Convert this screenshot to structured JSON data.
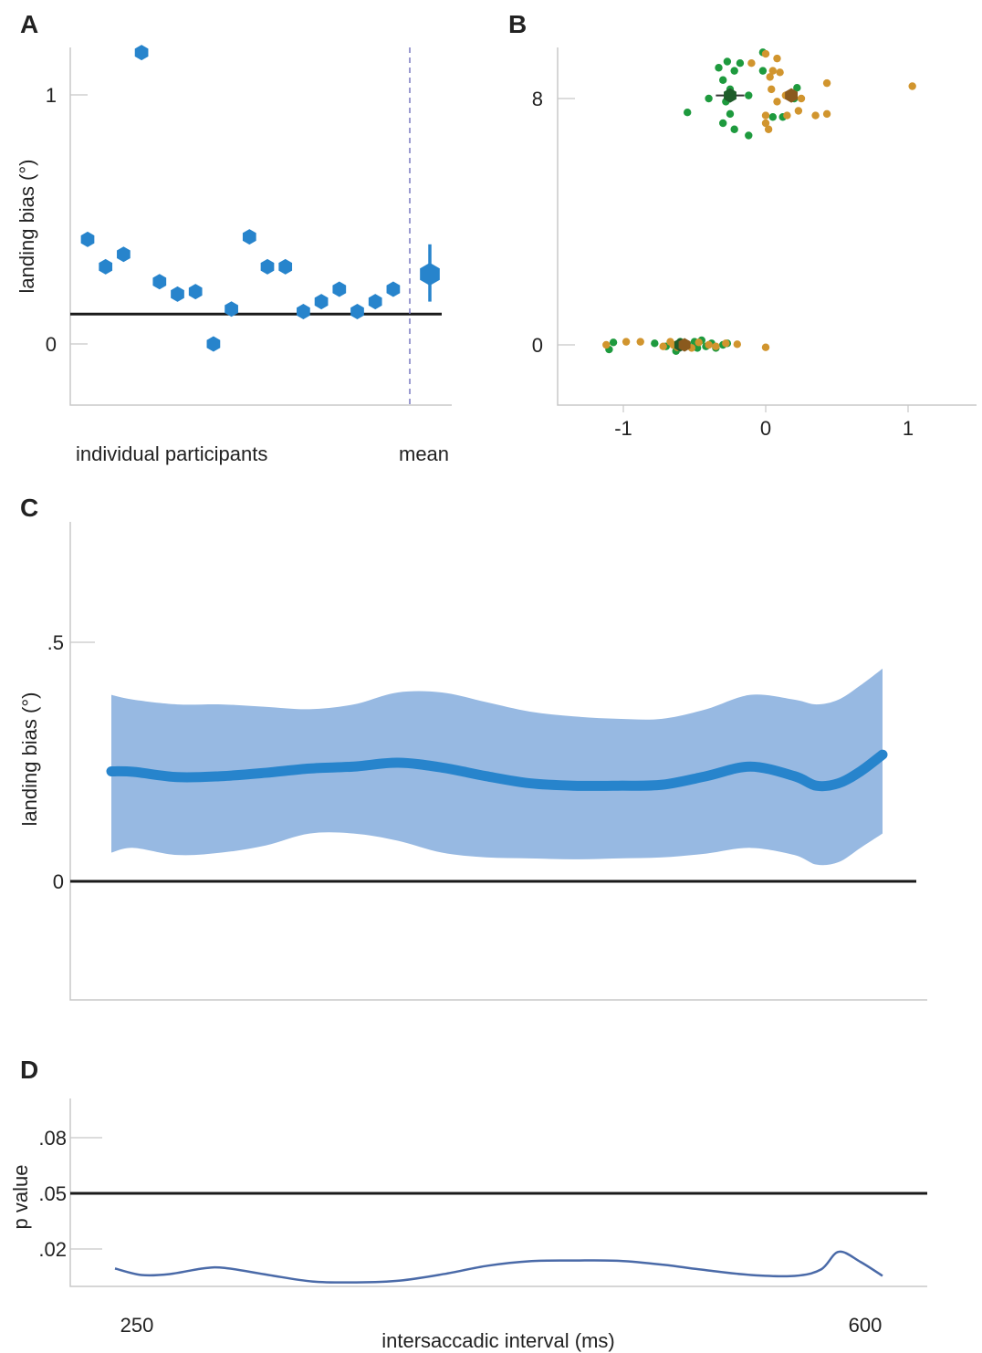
{
  "panels": {
    "A": {
      "letter": "A"
    },
    "B": {
      "letter": "B"
    },
    "C": {
      "letter": "C"
    },
    "D": {
      "letter": "D"
    }
  },
  "colors": {
    "blue": "#2784cc",
    "band": "#97b9e2",
    "green": "#1e9a3e",
    "orange": "#d1952e",
    "dark_green": "#1f5c2a",
    "dark_orange": "#8a5a1e",
    "p_line": "#4a6aa8",
    "dashed": "#7878c0",
    "black": "#1a1a1a"
  },
  "chart_data": [
    {
      "panel": "A",
      "type": "scatter",
      "ylabel": "landing bias (°)",
      "xlabel_left": "individual participants",
      "xlabel_right": "mean",
      "yticks": [
        0,
        1
      ],
      "ytick_labels": [
        "0",
        "1"
      ],
      "ylim": [
        -0.25,
        1.2
      ],
      "reference_line": 0.12,
      "participants": [
        0.42,
        0.31,
        0.36,
        1.17,
        0.25,
        0.2,
        0.21,
        0.0,
        0.14,
        0.43,
        0.31,
        0.31,
        0.13,
        0.17,
        0.22,
        0.13,
        0.17,
        0.22
      ],
      "mean": {
        "value": 0.28,
        "ci_low": 0.17,
        "ci_high": 0.4
      }
    },
    {
      "panel": "B",
      "type": "scatter",
      "xticks": [
        -1,
        0,
        1
      ],
      "xtick_labels": [
        "-1",
        "0",
        "1"
      ],
      "yticks": [
        0,
        8
      ],
      "ytick_labels": [
        "0",
        "8"
      ],
      "xlim": [
        -1.45,
        1.4
      ],
      "ylim": [
        -2,
        9.5
      ],
      "series": [
        {
          "color_key": "green",
          "points_y8": [
            [
              -0.02,
              9.5
            ],
            [
              -0.27,
              9.2
            ],
            [
              -0.18,
              9.15
            ],
            [
              -0.33,
              9.0
            ],
            [
              -0.22,
              8.9
            ],
            [
              -0.3,
              8.6
            ],
            [
              -0.25,
              8.3
            ],
            [
              -0.4,
              8.0
            ],
            [
              -0.28,
              7.9
            ],
            [
              -0.12,
              8.1
            ],
            [
              0.22,
              8.35
            ],
            [
              0.2,
              8.0
            ],
            [
              -0.55,
              7.55
            ],
            [
              -0.3,
              7.2
            ],
            [
              0.12,
              7.4
            ],
            [
              -0.22,
              7.0
            ],
            [
              -0.12,
              6.8
            ],
            [
              -0.25,
              7.5
            ],
            [
              0.05,
              7.4
            ],
            [
              -0.02,
              8.9
            ]
          ],
          "points_y0": [
            [
              -1.07,
              0.08
            ],
            [
              -1.1,
              -0.15
            ],
            [
              -0.78,
              0.05
            ],
            [
              -0.7,
              -0.05
            ],
            [
              -0.63,
              -0.2
            ],
            [
              -0.55,
              0.02
            ],
            [
              -0.5,
              0.1
            ],
            [
              -0.48,
              -0.1
            ],
            [
              -0.45,
              0.15
            ],
            [
              -0.42,
              -0.05
            ],
            [
              -0.38,
              0.05
            ],
            [
              -0.35,
              -0.1
            ],
            [
              -0.3,
              0.0
            ],
            [
              -0.27,
              0.05
            ],
            [
              -0.6,
              0.1
            ],
            [
              -0.57,
              -0.08
            ]
          ],
          "mean_y8": {
            "x": -0.25,
            "y": 8.1,
            "err": 0.08
          },
          "mean_y0": {
            "x": -0.6,
            "y": 0.0
          }
        },
        {
          "color_key": "orange",
          "points_y8": [
            [
              0.0,
              9.45
            ],
            [
              0.08,
              9.3
            ],
            [
              -0.1,
              9.15
            ],
            [
              0.1,
              8.85
            ],
            [
              0.03,
              8.7
            ],
            [
              0.04,
              8.3
            ],
            [
              0.14,
              8.1
            ],
            [
              0.08,
              7.9
            ],
            [
              0.25,
              8.0
            ],
            [
              0.43,
              8.5
            ],
            [
              1.03,
              8.4
            ],
            [
              0.0,
              7.45
            ],
            [
              0.15,
              7.45
            ],
            [
              0.23,
              7.6
            ],
            [
              0.35,
              7.45
            ],
            [
              0.43,
              7.5
            ],
            [
              0.0,
              7.2
            ],
            [
              0.02,
              7.0
            ],
            [
              0.05,
              8.9
            ]
          ],
          "points_y0": [
            [
              -1.12,
              0.0
            ],
            [
              -0.98,
              0.1
            ],
            [
              -0.88,
              0.1
            ],
            [
              -0.72,
              -0.05
            ],
            [
              -0.67,
              0.1
            ],
            [
              -0.62,
              -0.08
            ],
            [
              -0.57,
              0.05
            ],
            [
              -0.52,
              -0.1
            ],
            [
              -0.47,
              0.08
            ],
            [
              -0.4,
              0.0
            ],
            [
              -0.35,
              -0.05
            ],
            [
              -0.28,
              0.05
            ],
            [
              -0.2,
              0.02
            ],
            [
              0.0,
              -0.08
            ],
            [
              -0.65,
              0.0
            ]
          ],
          "mean_y8": {
            "x": 0.18,
            "y": 8.1
          },
          "mean_y0": {
            "x": -0.57,
            "y": 0.0
          }
        }
      ]
    },
    {
      "panel": "C",
      "type": "line",
      "ylabel": "landing bias (°)",
      "yticks": [
        0,
        0.5
      ],
      "ytick_labels": [
        "0",
        ".5"
      ],
      "ylim": [
        -0.25,
        0.75
      ],
      "xlim": [
        250,
        600
      ],
      "reference_line": 0,
      "x": [
        250,
        260,
        280,
        300,
        320,
        340,
        360,
        380,
        400,
        420,
        440,
        460,
        480,
        500,
        520,
        540,
        560,
        570,
        580,
        590,
        600
      ],
      "y": [
        0.23,
        0.229,
        0.218,
        0.22,
        0.227,
        0.236,
        0.24,
        0.248,
        0.238,
        0.22,
        0.205,
        0.2,
        0.2,
        0.202,
        0.22,
        0.24,
        0.22,
        0.2,
        0.205,
        0.23,
        0.265
      ],
      "lower": [
        0.06,
        0.07,
        0.055,
        0.06,
        0.075,
        0.1,
        0.1,
        0.085,
        0.06,
        0.05,
        0.048,
        0.046,
        0.048,
        0.05,
        0.058,
        0.07,
        0.055,
        0.035,
        0.04,
        0.07,
        0.1
      ],
      "upper": [
        0.39,
        0.38,
        0.37,
        0.37,
        0.365,
        0.36,
        0.37,
        0.395,
        0.395,
        0.375,
        0.355,
        0.345,
        0.34,
        0.34,
        0.36,
        0.39,
        0.38,
        0.37,
        0.38,
        0.41,
        0.445
      ]
    },
    {
      "panel": "D",
      "type": "line",
      "ylabel": "p value",
      "xlabel": "intersaccadic interval (ms)",
      "yticks": [
        0.02,
        0.05,
        0.08
      ],
      "ytick_labels": [
        ".02",
        ".05",
        ".08"
      ],
      "xticks": [
        250,
        600
      ],
      "xtick_labels": [
        "250",
        "600"
      ],
      "ylim": [
        0.0,
        0.105
      ],
      "xlim": [
        250,
        600
      ],
      "reference_line": 0.05,
      "x": [
        250,
        262,
        275,
        290,
        300,
        320,
        340,
        360,
        380,
        400,
        420,
        440,
        460,
        480,
        500,
        520,
        540,
        560,
        572,
        580,
        590,
        600
      ],
      "y": [
        0.0095,
        0.006,
        0.0065,
        0.0095,
        0.0098,
        0.006,
        0.0025,
        0.002,
        0.003,
        0.0065,
        0.011,
        0.0135,
        0.0138,
        0.0136,
        0.0115,
        0.0085,
        0.006,
        0.0055,
        0.009,
        0.0185,
        0.013,
        0.0055
      ]
    }
  ]
}
